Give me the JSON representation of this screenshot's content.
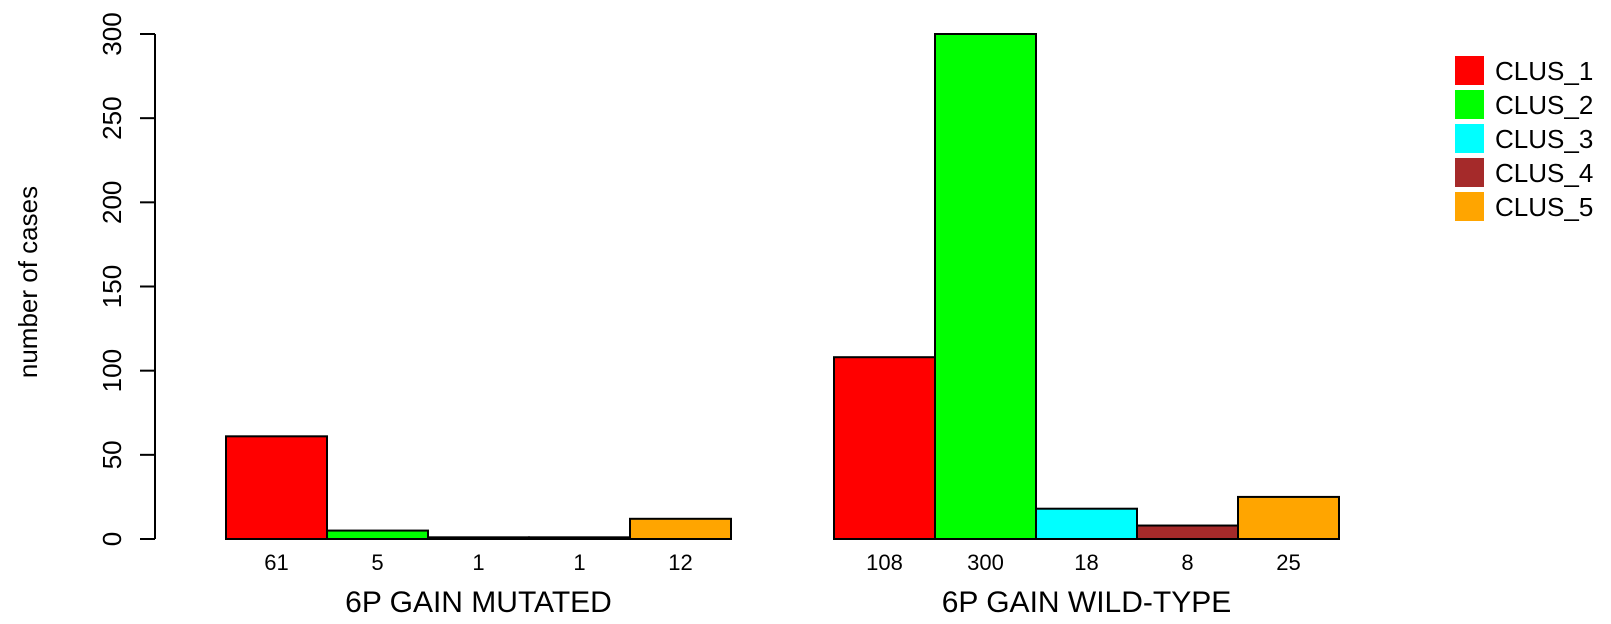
{
  "chart_data": {
    "type": "bar",
    "ylabel": "number of cases",
    "ylim": [
      0,
      300
    ],
    "yticks": [
      0,
      50,
      100,
      150,
      200,
      250,
      300
    ],
    "groups": [
      {
        "name": "6P GAIN MUTATED",
        "values": [
          61,
          5,
          1,
          1,
          12
        ]
      },
      {
        "name": "6P GAIN WILD-TYPE",
        "values": [
          108,
          300,
          18,
          8,
          25
        ]
      }
    ],
    "series": [
      {
        "name": "CLUS_1",
        "color": "#ff0000"
      },
      {
        "name": "CLUS_2",
        "color": "#00ff00"
      },
      {
        "name": "CLUS_3",
        "color": "#00ffff"
      },
      {
        "name": "CLUS_4",
        "color": "#a52a2a"
      },
      {
        "name": "CLUS_5",
        "color": "#ffa500"
      }
    ],
    "legend_position": "top-right",
    "grid": false
  }
}
